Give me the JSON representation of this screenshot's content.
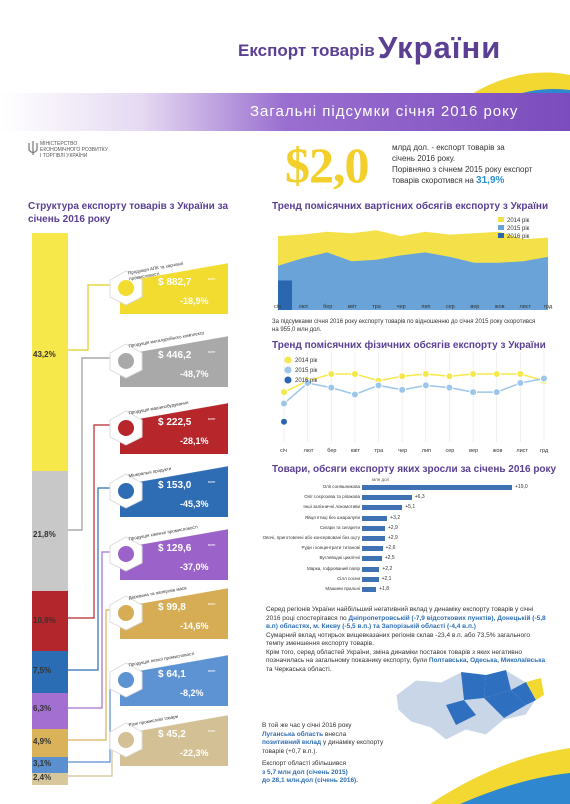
{
  "header": {
    "title_small": "Експорт товарів",
    "title_big": "України",
    "band_text": "Загальні підсумки січня 2016 року",
    "ministry": [
      "МІНІСТЕРСТВО",
      "ЕКОНОМІЧНОГО РОЗВИТКУ",
      "І ТОРГІВЛІ УКРАЇНИ"
    ]
  },
  "summary": {
    "big": "$2,0",
    "line1": "млрд дол. - експорт товарів за",
    "line2": "січень 2016 року.",
    "line3": "Порівняно з січнем 2015 року експорт",
    "line4": "товарів скоротився на",
    "pct": "31,9%"
  },
  "structure": {
    "title": "Структура експорту товарів з України за січень 2016 року",
    "shares": [
      {
        "pct": "43,2%",
        "color": "#f6e84a"
      },
      {
        "pct": "21,8%",
        "color": "#c8c8c8"
      },
      {
        "pct": "10,9%",
        "color": "#b3262b"
      },
      {
        "pct": "7,5%",
        "color": "#2b6db5"
      },
      {
        "pct": "6,3%",
        "color": "#a36fd1"
      },
      {
        "pct": "4,9%",
        "color": "#d9b25a"
      },
      {
        "pct": "3,1%",
        "color": "#5a8fd0"
      },
      {
        "pct": "2,4%",
        "color": "#d8c79a"
      }
    ],
    "cards": [
      {
        "label": "Продукція АПК та харчової промисловості",
        "value": "$ 882,7",
        "unit": "млн",
        "change": "-18,9%",
        "color": "#f1dc2f",
        "icon": "wheat-bag-icon"
      },
      {
        "label": "Продукція металургійного комплексу",
        "value": "$ 446,2",
        "unit": "млн",
        "change": "-48,7%",
        "color": "#a9a9a9",
        "icon": "factory-icon"
      },
      {
        "label": "Продукція машинобудування",
        "value": "$ 222,5",
        "unit": "млн",
        "change": "-28,1%",
        "color": "#b7262b",
        "icon": "gears-icon"
      },
      {
        "label": "Мінеральні продукти",
        "value": "$ 153,0",
        "unit": "млн",
        "change": "-45,3%",
        "color": "#2e6cb4",
        "icon": "oil-barrel-icon"
      },
      {
        "label": "Продукція хімічної промисловості",
        "value": "$ 129,6",
        "unit": "млн",
        "change": "-37,0%",
        "color": "#9b63c9",
        "icon": "flask-icon"
      },
      {
        "label": "Деревина та паперова маса",
        "value": "$ 99,8",
        "unit": "млн",
        "change": "-14,6%",
        "color": "#d6ad55",
        "icon": "tree-icon"
      },
      {
        "label": "Продукція легкої промисловості",
        "value": "$ 64,1",
        "unit": "млн",
        "change": "-8,2%",
        "color": "#5e93d3",
        "icon": "shirt-icon"
      },
      {
        "label": "Різні промислові товари",
        "value": "$ 45,2",
        "unit": "млн",
        "change": "-22,3%",
        "color": "#d3c095",
        "icon": "industry-icon"
      }
    ]
  },
  "chart_data": [
    {
      "type": "area",
      "title": "Тренд помісячних вартісних обсягів експорту з України",
      "categories": [
        "січ",
        "лют",
        "бер",
        "квіт",
        "тра",
        "чер",
        "лип",
        "сер",
        "вер",
        "жов",
        "лист",
        "грд"
      ],
      "series": [
        {
          "name": "2014 рік",
          "color": "#f4e14a",
          "values": [
            5.0,
            5.1,
            5.3,
            5.2,
            5.4,
            5.0,
            5.3,
            5.1,
            5.2,
            5.3,
            4.8,
            4.9
          ]
        },
        {
          "name": "2015 рік",
          "color": "#6aa3d8",
          "values": [
            3.0,
            3.5,
            3.9,
            3.3,
            3.4,
            3.7,
            3.9,
            3.6,
            3.2,
            3.2,
            3.3,
            3.6
          ]
        },
        {
          "name": "2016 рік",
          "color": "#2b66b0",
          "values": [
            2.0,
            null,
            null,
            null,
            null,
            null,
            null,
            null,
            null,
            null,
            null,
            null
          ]
        }
      ],
      "note": "За підсумками січня 2016 року експорту товарів по відношенню до січня 2015 року скоротився на 955,0 млн дол."
    },
    {
      "type": "line",
      "title": "Тренд помісячних фізичних обсягів експорту з України",
      "categories": [
        "січ",
        "лют",
        "бер",
        "квіт",
        "тра",
        "чер",
        "лип",
        "сер",
        "вер",
        "жов",
        "лист",
        "грд"
      ],
      "series": [
        {
          "name": "2014 рік",
          "color": "#f6e84a",
          "values": [
            4.1,
            4.6,
            4.9,
            4.9,
            4.6,
            4.8,
            4.9,
            4.8,
            4.9,
            4.9,
            4.9,
            4.6
          ]
        },
        {
          "name": "2015 рік",
          "color": "#9cc6ea",
          "values": [
            3.6,
            4.5,
            4.3,
            4.0,
            4.4,
            4.2,
            4.4,
            4.3,
            4.1,
            4.1,
            4.5,
            4.7
          ]
        },
        {
          "name": "2016 рік",
          "color": "#2b66b0",
          "values": [
            2.8,
            null,
            null,
            null,
            null,
            null,
            null,
            null,
            null,
            null,
            null,
            null
          ]
        }
      ]
    },
    {
      "type": "bar",
      "title": "Товари, обсяги експорту яких зросли за січень 2016 року",
      "unit": "млн дол",
      "categories": [
        "Олії соняшникова",
        "Олії соєрозова та ріпакова",
        "Інші залізничні локомотиви",
        "Яйця птиці без шкаралупи",
        "Сигари та сигарети",
        "Овочі, приготовлені або консервовані без оцту",
        "Руди і концентрати титанові",
        "Вуглеводні циклічні",
        "Маркa, гофрований папір",
        "Сілл сосни",
        "Машини пральні"
      ],
      "values": [
        19.0,
        6.3,
        5.1,
        3.2,
        2.9,
        2.9,
        2.6,
        2.5,
        2.2,
        2.1,
        1.8
      ],
      "labels": [
        "+19,0",
        "+6,3",
        "+5,1",
        "+3,2",
        "+2,9",
        "+2,9",
        "+2,6",
        "+2,5",
        "+2,2",
        "+2,1",
        "+1,8"
      ]
    }
  ],
  "regions": {
    "p1": "Серед регіонів України найбільший негативний вклад у динаміку експорту товарів у січні 2016 році спостерігався по",
    "p1b": "Дніпропетровській (-7,9 відсоткових пунктів), Донецькій (-5,8 в.п) областях, м. Києву (-5,5 в.п.) та Запорізькій області (-4,4 в.п.)",
    "p2": "Сумарний вклад чотирьох вищевказаних регіонів склав -23,4 в.п. або 73,5% загального темпу зменшення експорту товарів.",
    "p3": "Крім того, серед областей України, зміна динаміки поставок товарів з яких негативно позначилась на загальному показнику експорту, були",
    "p3b": "Полтавська, Одеська, Миколаївська",
    "p3c": "та Черкаська області.",
    "q1": "В той же час у січні 2016 року",
    "q2": "Луганська область",
    "q3": "внесла",
    "q4": "позитивний вклад",
    "q5": "у динаміку експорту товарів (+0,7 в.п.).",
    "q6": "Експорт області збільшився",
    "q7": "з 5,7 млн дол (січень 2015)",
    "q8": "до 28,1 млн.дол (січень 2016)."
  }
}
